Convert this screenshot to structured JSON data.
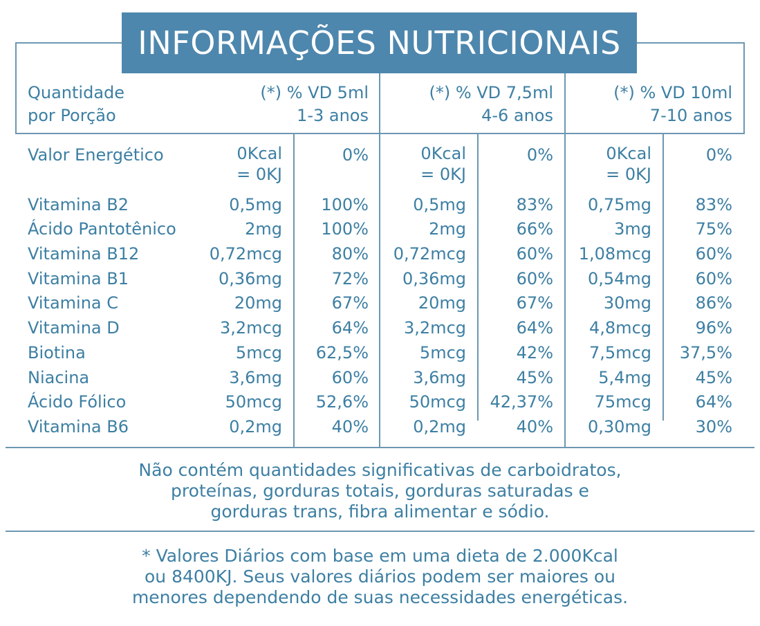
{
  "title": "INFORMAÇÕES NUTRICIONAIS",
  "header": {
    "quantity_label_line1": "Quantidade",
    "quantity_label_line2": "por Porção",
    "groups": [
      {
        "line1": "(*) % VD 5ml",
        "line2": "1-3 anos"
      },
      {
        "line1": "(*) % VD 7,5ml",
        "line2": "4-6 anos"
      },
      {
        "line1": "(*) % VD 10ml",
        "line2": "7-10 anos"
      }
    ]
  },
  "energy": {
    "name": "Valor Energético",
    "values": [
      {
        "amount_line1": "0Kcal",
        "amount_line2": "= 0KJ",
        "vd": "0%"
      },
      {
        "amount_line1": "0Kcal",
        "amount_line2": "= 0KJ",
        "vd": "0%"
      },
      {
        "amount_line1": "0Kcal",
        "amount_line2": "= 0KJ",
        "vd": "0%"
      }
    ]
  },
  "rows": [
    {
      "name": "Vitamina B2",
      "cells": [
        "0,5mg",
        "100%",
        "0,5mg",
        "83%",
        "0,75mg",
        "83%"
      ]
    },
    {
      "name": "Ácido Pantotênico",
      "cells": [
        "2mg",
        "100%",
        "2mg",
        "66%",
        "3mg",
        "75%"
      ]
    },
    {
      "name": "Vitamina B12",
      "cells": [
        "0,72mcg",
        "80%",
        "0,72mcg",
        "60%",
        "1,08mcg",
        "60%"
      ]
    },
    {
      "name": "Vitamina B1",
      "cells": [
        "0,36mg",
        "72%",
        "0,36mg",
        "60%",
        "0,54mg",
        "60%"
      ]
    },
    {
      "name": "Vitamina C",
      "cells": [
        "20mg",
        "67%",
        "20mg",
        "67%",
        "30mg",
        "86%"
      ]
    },
    {
      "name": "Vitamina D",
      "cells": [
        "3,2mcg",
        "64%",
        "3,2mcg",
        "64%",
        "4,8mcg",
        "96%"
      ]
    },
    {
      "name": "Biotina",
      "cells": [
        "5mcg",
        "62,5%",
        "5mcg",
        "42%",
        "7,5mcg",
        "37,5%"
      ]
    },
    {
      "name": "Niacina",
      "cells": [
        "3,6mg",
        "60%",
        "3,6mg",
        "45%",
        "5,4mg",
        "45%"
      ]
    },
    {
      "name": "Ácido Fólico",
      "cells": [
        "50mcg",
        "52,6%",
        "50mcg",
        "42,37%",
        "75mcg",
        "64%"
      ]
    },
    {
      "name": "Vitamina B6",
      "cells": [
        "0,2mg",
        "40%",
        "0,2mg",
        "40%",
        "0,30mg",
        "30%"
      ]
    }
  ],
  "note1": {
    "line1": "Não contém quantidades significativas de carboidratos,",
    "line2": "proteínas, gorduras totais, gorduras saturadas e",
    "line3": "gorduras trans, fibra alimentar e sódio."
  },
  "note2": {
    "line1": "* Valores Diários com base em uma dieta de 2.000Kcal",
    "line2": "ou 8400KJ. Seus valores diários podem ser maiores ou",
    "line3": "menores dependendo de suas necessidades energéticas."
  },
  "colors": {
    "text": "#3d7fa3",
    "title_bg": "#4e87ad",
    "lines": "#6c97b2"
  }
}
